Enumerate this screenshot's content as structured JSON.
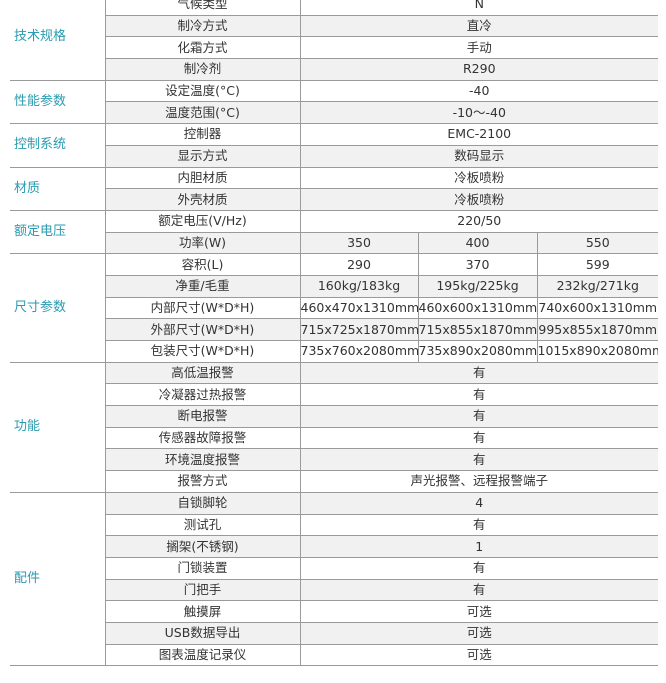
{
  "groups": [
    {
      "name": "技术规格",
      "rows": [
        {
          "param": "气候类型",
          "value": "N"
        },
        {
          "param": "制冷方式",
          "value": "直冷"
        },
        {
          "param": "化霜方式",
          "value": "手动"
        },
        {
          "param": "制冷剂",
          "value": "R290"
        }
      ]
    },
    {
      "name": "性能参数",
      "rows": [
        {
          "param": "设定温度(°C)",
          "value": "-40"
        },
        {
          "param": "温度范围(°C)",
          "value": "-10～-40"
        }
      ]
    },
    {
      "name": "控制系统",
      "rows": [
        {
          "param": "控制器",
          "value": "EMC-2100"
        },
        {
          "param": "显示方式",
          "value": "数码显示"
        }
      ]
    },
    {
      "name": "材质",
      "rows": [
        {
          "param": "内胆材质",
          "value": "冷板喷粉"
        },
        {
          "param": "外壳材质",
          "value": "冷板喷粉"
        }
      ]
    },
    {
      "name": "额定电压",
      "rows": [
        {
          "param": "额定电压(V/Hz)",
          "value": "220/50"
        },
        {
          "param": "功率(W)",
          "values": [
            "350",
            "400",
            "550"
          ]
        }
      ]
    },
    {
      "name": "尺寸参数",
      "rows": [
        {
          "param": "容积(L)",
          "values": [
            "290",
            "370",
            "599"
          ]
        },
        {
          "param": "净重/毛重",
          "values": [
            "160kg/183kg",
            "195kg/225kg",
            "232kg/271kg"
          ]
        },
        {
          "param": "内部尺寸(W*D*H)",
          "values": [
            "460x470x1310mm",
            "460x600x1310mm",
            "740x600x1310mm"
          ]
        },
        {
          "param": "外部尺寸(W*D*H)",
          "values": [
            "715x725x1870mm",
            "715x855x1870mm",
            "995x855x1870mm"
          ]
        },
        {
          "param": "包装尺寸(W*D*H)",
          "values": [
            "735x760x2080mm",
            "735x890x2080mm",
            "1015x890x2080mm"
          ]
        }
      ]
    },
    {
      "name": "功能",
      "rows": [
        {
          "param": "高低温报警",
          "value": "有"
        },
        {
          "param": "冷凝器过热报警",
          "value": "有"
        },
        {
          "param": "断电报警",
          "value": "有"
        },
        {
          "param": "传感器故障报警",
          "value": "有"
        },
        {
          "param": "环境温度报警",
          "value": "有"
        },
        {
          "param": "报警方式",
          "value": "声光报警、远程报警端子"
        }
      ]
    },
    {
      "name": "配件",
      "rows": [
        {
          "param": "自锁脚轮",
          "value": "4"
        },
        {
          "param": "测试孔",
          "value": "有"
        },
        {
          "param": "搁架(不锈钢)",
          "value": "1"
        },
        {
          "param": "门锁装置",
          "value": "有"
        },
        {
          "param": "门把手",
          "value": "有"
        },
        {
          "param": "触摸屏",
          "value": "可选"
        },
        {
          "param": "USB数据导出",
          "value": "可选"
        },
        {
          "param": "图表温度记录仪",
          "value": "可选"
        }
      ]
    }
  ],
  "colors": {
    "category_text": "#2a9bb0",
    "stripe": "#f1f1f1",
    "grid": "#9a9a9a"
  }
}
